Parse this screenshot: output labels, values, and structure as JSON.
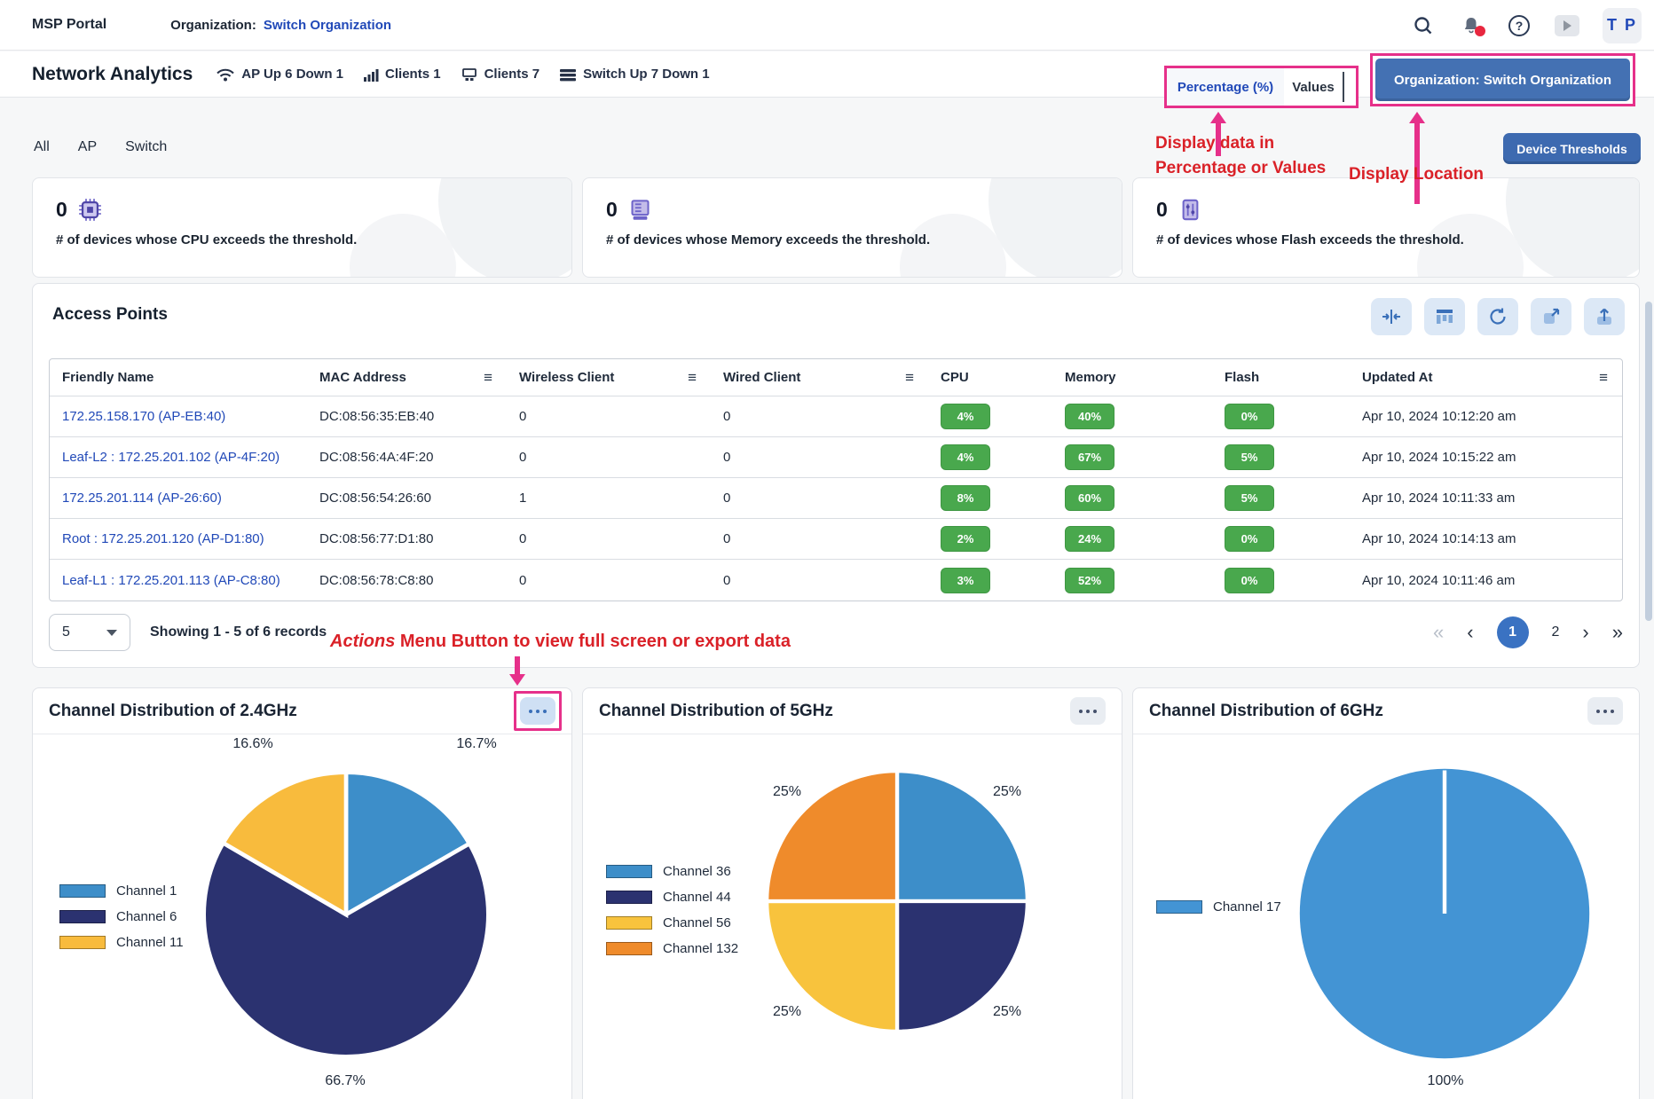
{
  "topbar": {
    "brand": "MSP Portal",
    "org_label": "Organization:",
    "org_value": "Switch Organization",
    "avatar_initials": "T P",
    "help_glyph": "?"
  },
  "analytics_bar": {
    "title": "Network Analytics",
    "device_stats": [
      {
        "icon": "wifi-icon",
        "label": "AP  Up 6  Down 1"
      },
      {
        "icon": "signal-bars-icon",
        "label": "Clients 1"
      },
      {
        "icon": "wired-clients-icon",
        "label": "Clients 7"
      },
      {
        "icon": "switch-icon",
        "label": "Switch Up 7  Down 1"
      }
    ],
    "view_toggle": {
      "options": [
        "Percentage (%)",
        "Values"
      ],
      "active": "Percentage (%)"
    },
    "org_button_label": "Organization: Switch Organization"
  },
  "annotations": {
    "toggle_note_line1": "Display data in",
    "toggle_note_line2": "Percentage or Values",
    "location_note": "Display Location",
    "actions_note_em": "Actions",
    "actions_note_rest": " Menu Button to view full screen or export data"
  },
  "tabs": [
    "All",
    "AP",
    "Switch"
  ],
  "thresholds_button_label": "Device Thresholds",
  "stat_cards": [
    {
      "value": "0",
      "icon": "cpu-chip-icon",
      "caption": "# of devices whose CPU exceeds the threshold."
    },
    {
      "value": "0",
      "icon": "memory-icon",
      "caption": "# of devices whose Memory exceeds the threshold."
    },
    {
      "value": "0",
      "icon": "flash-icon",
      "caption": "# of devices whose Flash exceeds the threshold."
    }
  ],
  "access_points": {
    "title": "Access Points",
    "column_menu_glyph": "≡",
    "columns": [
      "Friendly Name",
      "MAC Address",
      "Wireless Client",
      "Wired Client",
      "CPU",
      "Memory",
      "Flash",
      "Updated At"
    ],
    "rows": [
      {
        "friendly_name": "172.25.158.170 (AP-EB:40)",
        "mac": "DC:08:56:35:EB:40",
        "wireless": "0",
        "wired": "0",
        "cpu": "4%",
        "memory": "40%",
        "flash": "0%",
        "updated": "Apr 10, 2024 10:12:20 am"
      },
      {
        "friendly_name": "Leaf-L2 : 172.25.201.102 (AP-4F:20)",
        "mac": "DC:08:56:4A:4F:20",
        "wireless": "0",
        "wired": "0",
        "cpu": "4%",
        "memory": "67%",
        "flash": "5%",
        "updated": "Apr 10, 2024 10:15:22 am"
      },
      {
        "friendly_name": "172.25.201.114 (AP-26:60)",
        "mac": "DC:08:56:54:26:60",
        "wireless": "1",
        "wired": "0",
        "cpu": "8%",
        "memory": "60%",
        "flash": "5%",
        "updated": "Apr 10, 2024 10:11:33 am"
      },
      {
        "friendly_name": "Root : 172.25.201.120 (AP-D1:80)",
        "mac": "DC:08:56:77:D1:80",
        "wireless": "0",
        "wired": "0",
        "cpu": "2%",
        "memory": "24%",
        "flash": "0%",
        "updated": "Apr 10, 2024 10:14:13 am"
      },
      {
        "friendly_name": "Leaf-L1 : 172.25.201.113 (AP-C8:80)",
        "mac": "DC:08:56:78:C8:80",
        "wireless": "0",
        "wired": "0",
        "cpu": "3%",
        "memory": "52%",
        "flash": "0%",
        "updated": "Apr 10, 2024 10:11:46 am"
      }
    ],
    "footer": {
      "page_size": "5",
      "showing": "Showing 1 - 5 of 6 records",
      "pagination": {
        "first_icon": "«",
        "prev_icon": "‹",
        "pages": [
          "1",
          "2"
        ],
        "active_page": "1",
        "next_icon": "›",
        "last_icon": "»"
      }
    }
  },
  "chart_data": [
    {
      "type": "pie",
      "title": "Channel Distribution of 2.4GHz",
      "legend_position": "left",
      "series": [
        {
          "name": "Channel 1",
          "value": 16.7,
          "color": "#3d8ec9"
        },
        {
          "name": "Channel 6",
          "value": 66.7,
          "color": "#2b3270"
        },
        {
          "name": "Channel 11",
          "value": 16.6,
          "color": "#f8bb3d"
        }
      ],
      "labels": [
        "16.6%",
        "16.7%",
        "66.7%"
      ]
    },
    {
      "type": "pie",
      "title": "Channel Distribution of 5GHz",
      "legend_position": "left",
      "series": [
        {
          "name": "Channel 36",
          "value": 25,
          "color": "#3d8ec9"
        },
        {
          "name": "Channel 44",
          "value": 25,
          "color": "#2b3270"
        },
        {
          "name": "Channel 56",
          "value": 25,
          "color": "#f8c33d"
        },
        {
          "name": "Channel 132",
          "value": 25,
          "color": "#ef8b2b"
        }
      ],
      "labels": [
        "25%",
        "25%",
        "25%",
        "25%"
      ]
    },
    {
      "type": "pie",
      "title": "Channel Distribution of 6GHz",
      "legend_position": "left",
      "series": [
        {
          "name": "Channel 17",
          "value": 100,
          "color": "#4394d4"
        }
      ],
      "labels": [
        "100%"
      ]
    }
  ],
  "colors": {
    "link_blue": "#2149b8",
    "button_blue": "#4471b3",
    "badge_green": "#49a84d",
    "annotation_pink": "#e6308a",
    "annotation_red": "#da2128",
    "active_page_blue": "#3a72c2"
  }
}
